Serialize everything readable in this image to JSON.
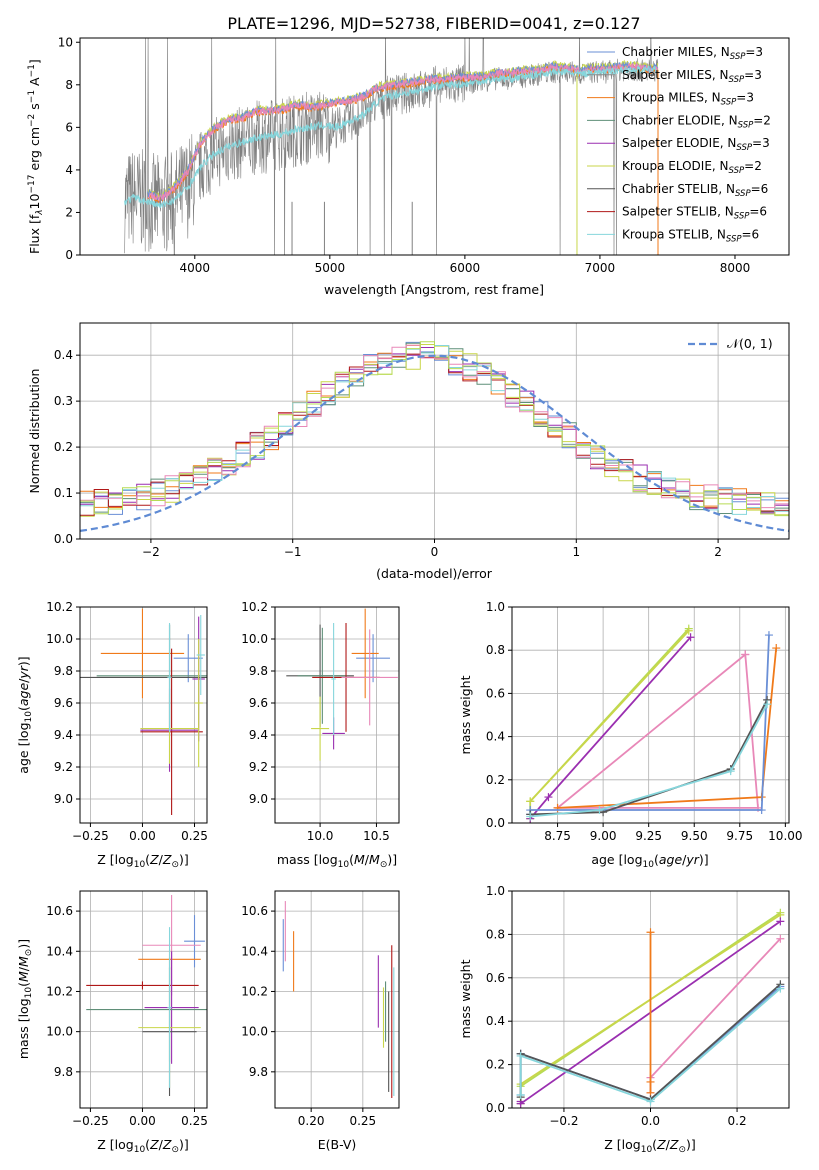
{
  "figure_title": "PLATE=1296, MJD=52738, FIBERID=0041, z=0.127",
  "colors": {
    "chabrier_miles": "#6a8fd6",
    "salpeter_miles": "#8a8a8a",
    "kroupa_miles": "#f07a1a",
    "chabrier_elodie": "#5f8f78",
    "salpeter_elodie": "#9a2fb0",
    "kroupa_elodie": "#c9d64a",
    "chabrier_stelib": "#555555",
    "salpeter_stelib": "#b01818",
    "kroupa_stelib": "#86d6dc",
    "pink": "#e888b8",
    "green": "#b6db55",
    "grid": "#b0b0b0",
    "data_grey": "#808080",
    "gaussian": "#5f8bd4"
  },
  "chart_data": [
    {
      "id": "spectrum",
      "type": "line",
      "title": "PLATE=1296, MJD=52738, FIBERID=0041, z=0.127",
      "xlabel": "wavelength [Angstrom, rest frame]",
      "ylabel_main": "Flux [f",
      "ylabel_sub": "λ",
      "ylabel_rest": "10",
      "ylabel_exp1": "−17",
      "ylabel_unit": " erg cm",
      "ylabel_exp2": "−2",
      "ylabel_unit2": " s",
      "ylabel_exp3": "−1",
      "ylabel_unit3": " A",
      "ylabel_exp4": "−1",
      "ylabel_end": "]",
      "xlim": [
        3150,
        8400
      ],
      "ylim": [
        0,
        10.2
      ],
      "xticks": [
        4000,
        5000,
        6000,
        7000,
        8000
      ],
      "yticks": [
        0,
        2,
        4,
        6,
        8,
        10
      ],
      "data_x": [
        3480,
        3550,
        3650,
        3750,
        3850,
        3950,
        4050,
        4150,
        4250,
        4350,
        4450,
        4550,
        4650,
        4750,
        4850,
        4950,
        5050,
        5150,
        5250,
        5350,
        5450,
        5550,
        5650,
        5750,
        5850,
        5950,
        6050,
        6150,
        6250,
        6350,
        6450,
        6550,
        6650,
        6750,
        6850,
        6950,
        7050,
        7150,
        7250,
        7350,
        7430
      ],
      "model_x": [
        3480,
        3550,
        3650,
        3750,
        3850,
        3950,
        4050,
        4150,
        4250,
        4350,
        4450,
        4550,
        4650,
        4750,
        4850,
        4950,
        5050,
        5150,
        5250,
        5350,
        5450,
        5550,
        5650,
        5750,
        5850,
        5950,
        6050,
        6150,
        6250,
        6350,
        6450,
        6550,
        6650,
        6750,
        6850,
        6950,
        7050,
        7150,
        7250,
        7350,
        7430
      ],
      "model_y": [
        2.5,
        2.7,
        2.5,
        2.3,
        2.6,
        3.2,
        4.2,
        4.8,
        5.1,
        5.3,
        5.5,
        5.6,
        5.7,
        5.9,
        6.0,
        6.1,
        6.0,
        6.3,
        6.6,
        7.2,
        7.5,
        7.6,
        7.7,
        7.9,
        8.0,
        8.0,
        8.1,
        8.2,
        8.3,
        8.3,
        8.4,
        8.5,
        8.6,
        8.6,
        8.5,
        8.6,
        8.6,
        8.7,
        8.7,
        8.7,
        8.7
      ],
      "miles_y": [
        null,
        null,
        2.9,
        2.7,
        3.2,
        4.0,
        5.4,
        6.0,
        6.4,
        6.5,
        6.8,
        6.8,
        6.9,
        7.1,
        7.0,
        7.1,
        7.2,
        7.3,
        7.5,
        7.9,
        8.0,
        8.1,
        8.2,
        8.3,
        8.3,
        8.4,
        8.4,
        8.4,
        8.6,
        8.6,
        8.7,
        8.7,
        8.9,
        8.8,
        8.7,
        8.8,
        8.8,
        8.9,
        8.9,
        8.8,
        8.8
      ],
      "legend": [
        {
          "label_a": "Chabrier MILES, N",
          "label_b": "SSP",
          "label_c": "=3",
          "color": "#6a8fd6"
        },
        {
          "label_a": "Salpeter MILES, N",
          "label_b": "SSP",
          "label_c": "=3",
          "color": "#8a8a8a"
        },
        {
          "label_a": "Kroupa MILES, N",
          "label_b": "SSP",
          "label_c": "=3",
          "color": "#f07a1a"
        },
        {
          "label_a": "Chabrier ELODIE, N",
          "label_b": "SSP",
          "label_c": "=2",
          "color": "#5f8f78"
        },
        {
          "label_a": "Salpeter ELODIE, N",
          "label_b": "SSP",
          "label_c": "=3",
          "color": "#9a2fb0"
        },
        {
          "label_a": "Kroupa ELODIE, N",
          "label_b": "SSP",
          "label_c": "=2",
          "color": "#c9d64a"
        },
        {
          "label_a": "Chabrier STELIB, N",
          "label_b": "SSP",
          "label_c": "=6",
          "color": "#555555"
        },
        {
          "label_a": "Salpeter STELIB, N",
          "label_b": "SSP",
          "label_c": "=6",
          "color": "#b01818"
        },
        {
          "label_a": "Kroupa STELIB, N",
          "label_b": "SSP",
          "label_c": "=6",
          "color": "#86d6dc"
        }
      ]
    },
    {
      "id": "residuals",
      "type": "line",
      "xlabel": "(data-model)/error",
      "ylabel": "Normed distribution",
      "xlim": [
        -2.5,
        2.5
      ],
      "ylim": [
        0,
        0.47
      ],
      "xticks": [
        -2,
        -1,
        0,
        1,
        2
      ],
      "yticks": [
        0.0,
        0.1,
        0.2,
        0.3,
        0.4
      ],
      "bin_width": 0.1,
      "legend_label": "𝒩(0, 1)",
      "hist_colors": [
        "#6a8fd6",
        "#f07a1a",
        "#5f8f78",
        "#9a2fb0",
        "#c9d64a",
        "#b01818",
        "#86d6dc",
        "#e888b8",
        "#b6db55"
      ]
    },
    {
      "id": "age_vs_z",
      "type": "scatter",
      "xlabel": "Z [log10(Z/Z⊙)]",
      "ylabel": "age  [log10(age/yr)]",
      "xlim": [
        -0.3,
        0.31
      ],
      "ylim": [
        8.85,
        10.2
      ],
      "xticks": [
        -0.25,
        0.0,
        0.25
      ],
      "yticks": [
        9.0,
        9.2,
        9.4,
        9.6,
        9.8,
        10.0,
        10.2
      ],
      "points": [
        {
          "x": 0.22,
          "y": 9.88,
          "xerr": 0.07,
          "yerr": 0.15,
          "color": "#6a8fd6"
        },
        {
          "x": 0.0,
          "y": 9.91,
          "xerr": 0.2,
          "yerr": 0.28,
          "color": "#f07a1a"
        },
        {
          "x": 0.13,
          "y": 9.76,
          "xerr": 0.43,
          "yerr": 0.33,
          "color": "#555555"
        },
        {
          "x": 0.13,
          "y": 9.77,
          "xerr": 0.35,
          "yerr": 0.32,
          "color": "#5f8f78"
        },
        {
          "x": 0.27,
          "y": 9.75,
          "xerr": 0.03,
          "yerr": 0.39,
          "color": "#9a2fb0"
        },
        {
          "x": 0.14,
          "y": 9.42,
          "xerr": 0.15,
          "yerr": 0.52,
          "color": "#b01818"
        },
        {
          "x": 0.13,
          "y": 9.43,
          "xerr": 0.14,
          "yerr": 0.26,
          "color": "#9a2fb0"
        },
        {
          "x": 0.13,
          "y": 9.44,
          "xerr": 0.14,
          "yerr": 0.22,
          "color": "#c9d64a"
        },
        {
          "x": 0.27,
          "y": 9.6,
          "xerr": 0.02,
          "yerr": 0.4,
          "color": "#c9d64a"
        },
        {
          "x": 0.28,
          "y": 9.9,
          "xerr": 0.02,
          "yerr": 0.25,
          "color": "#86d6dc"
        },
        {
          "x": 0.13,
          "y": 9.76,
          "xerr": 0.01,
          "yerr": 0.34,
          "color": "#86d6dc"
        }
      ]
    },
    {
      "id": "age_vs_mass",
      "type": "scatter",
      "xlabel": "mass [log10(M/M⊙)]",
      "xlim": [
        9.6,
        10.7
      ],
      "ylim": [
        8.85,
        10.2
      ],
      "xticks": [
        10.0,
        10.5
      ],
      "yticks": [
        9.0,
        9.2,
        9.4,
        9.6,
        9.8,
        10.0,
        10.2
      ],
      "points": [
        {
          "x": 10.47,
          "y": 9.88,
          "xerr": 0.15,
          "yerr": 0.15,
          "color": "#6a8fd6"
        },
        {
          "x": 10.4,
          "y": 9.91,
          "xerr": 0.12,
          "yerr": 0.28,
          "color": "#f07a1a"
        },
        {
          "x": 10.0,
          "y": 9.77,
          "xerr": 0.3,
          "yerr": 0.32,
          "color": "#555555"
        },
        {
          "x": 10.02,
          "y": 9.77,
          "xerr": 0.22,
          "yerr": 0.3,
          "color": "#5f8f78"
        },
        {
          "x": 10.23,
          "y": 9.76,
          "xerr": 0.3,
          "yerr": 0.34,
          "color": "#b01818"
        },
        {
          "x": 10.44,
          "y": 9.76,
          "xerr": 0.25,
          "yerr": 0.3,
          "color": "#e888b8"
        },
        {
          "x": 10.12,
          "y": 9.41,
          "xerr": 0.1,
          "yerr": 0.1,
          "color": "#9a2fb0"
        },
        {
          "x": 10.0,
          "y": 9.44,
          "xerr": 0.08,
          "yerr": 0.2,
          "color": "#c9d64a"
        },
        {
          "x": 10.12,
          "y": 9.75,
          "xerr": 0.02,
          "yerr": 0.35,
          "color": "#86d6dc"
        }
      ]
    },
    {
      "id": "weight_vs_age",
      "type": "line",
      "xlabel": "age  [log10(age/yr)]",
      "ylabel": "mass weight",
      "xlim": [
        8.5,
        10.02
      ],
      "ylim": [
        0,
        1.0
      ],
      "xticks": [
        8.75,
        9.0,
        9.25,
        9.5,
        9.75,
        10.0
      ],
      "yticks": [
        0.0,
        0.2,
        0.4,
        0.6,
        0.8,
        1.0
      ],
      "series": [
        {
          "color": "#b6db55",
          "x": [
            9.47,
            8.6,
            8.6
          ],
          "y": [
            0.9,
            0.1,
            0.02
          ]
        },
        {
          "color": "#c9d64a",
          "x": [
            9.47,
            8.6
          ],
          "y": [
            0.89,
            0.1
          ]
        },
        {
          "color": "#9a2fb0",
          "x": [
            9.48,
            8.7,
            8.6
          ],
          "y": [
            0.86,
            0.12,
            0.02
          ]
        },
        {
          "color": "#e888b8",
          "x": [
            9.78,
            9.85,
            8.75,
            9.78
          ],
          "y": [
            0.78,
            0.07,
            0.07,
            0.78
          ]
        },
        {
          "color": "#f07a1a",
          "x": [
            9.95,
            9.87,
            8.75
          ],
          "y": [
            0.81,
            0.12,
            0.07
          ]
        },
        {
          "color": "#6a8fd6",
          "x": [
            9.91,
            9.87,
            8.6,
            8.6
          ],
          "y": [
            0.87,
            0.06,
            0.06,
            0.04
          ]
        },
        {
          "color": "#555555",
          "x": [
            9.9,
            9.7,
            9.0,
            8.6
          ],
          "y": [
            0.57,
            0.25,
            0.05,
            0.04
          ]
        },
        {
          "color": "#86d6dc",
          "x": [
            9.9,
            9.7,
            8.98,
            8.6
          ],
          "y": [
            0.55,
            0.24,
            0.06,
            0.03
          ]
        }
      ]
    },
    {
      "id": "mass_vs_z",
      "type": "scatter",
      "xlabel": "Z [log10(Z/Z⊙)]",
      "ylabel": "mass [log10(M/M⊙)]",
      "xlim": [
        -0.3,
        0.31
      ],
      "ylim": [
        9.62,
        10.7
      ],
      "xticks": [
        -0.25,
        0.0,
        0.25
      ],
      "yticks": [
        9.8,
        10.0,
        10.2,
        10.4,
        10.6
      ],
      "points": [
        {
          "x": 0.25,
          "y": 10.45,
          "xerr": 0.05,
          "yerr": 0.13,
          "color": "#6a8fd6"
        },
        {
          "x": 0.13,
          "y": 10.36,
          "xerr": 0.15,
          "yerr": 0.05,
          "color": "#f07a1a"
        },
        {
          "x": 0.0,
          "y": 10.23,
          "xerr": 0.27,
          "yerr": 0.02,
          "color": "#b01818"
        },
        {
          "x": 0.14,
          "y": 10.43,
          "xerr": 0.14,
          "yerr": 0.25,
          "color": "#e888b8"
        },
        {
          "x": 0.14,
          "y": 10.12,
          "xerr": 0.13,
          "yerr": 0.28,
          "color": "#9a2fb0"
        },
        {
          "x": 0.13,
          "y": 10.02,
          "xerr": 0.15,
          "yerr": 0.3,
          "color": "#c9d64a"
        },
        {
          "x": 0.13,
          "y": 10.0,
          "xerr": 0.13,
          "yerr": 0.32,
          "color": "#555555"
        },
        {
          "x": 0.13,
          "y": 10.11,
          "xerr": 0.4,
          "yerr": 0.26,
          "color": "#5f8f78"
        },
        {
          "x": 0.13,
          "y": 10.12,
          "xerr": 0.01,
          "yerr": 0.4,
          "color": "#86d6dc"
        }
      ]
    },
    {
      "id": "mass_vs_ebv",
      "type": "scatter",
      "xlabel": "E(B-V)",
      "xlim": [
        0.165,
        0.285
      ],
      "ylim": [
        9.62,
        10.7
      ],
      "xticks": [
        0.2,
        0.25
      ],
      "yticks": [
        9.8,
        10.0,
        10.2,
        10.4,
        10.6
      ],
      "points": [
        {
          "x": 0.175,
          "y": 10.5,
          "yerr": 0.15,
          "color": "#e888b8"
        },
        {
          "x": 0.173,
          "y": 10.43,
          "yerr": 0.13,
          "color": "#6a8fd6"
        },
        {
          "x": 0.183,
          "y": 10.35,
          "yerr": 0.15,
          "color": "#f07a1a"
        },
        {
          "x": 0.265,
          "y": 10.2,
          "yerr": 0.18,
          "color": "#9a2fb0"
        },
        {
          "x": 0.27,
          "y": 10.07,
          "yerr": 0.15,
          "color": "#c9d64a"
        },
        {
          "x": 0.272,
          "y": 10.1,
          "yerr": 0.15,
          "color": "#5f8f78"
        },
        {
          "x": 0.278,
          "y": 10.05,
          "yerr": 0.38,
          "color": "#b01818"
        },
        {
          "x": 0.28,
          "y": 10.0,
          "yerr": 0.32,
          "color": "#86d6dc"
        },
        {
          "x": 0.275,
          "y": 9.95,
          "yerr": 0.25,
          "color": "#555555"
        }
      ]
    },
    {
      "id": "weight_vs_z",
      "type": "line",
      "xlabel": "Z [log10(Z/Z⊙)]",
      "ylabel": "mass weight",
      "xlim": [
        -0.32,
        0.32
      ],
      "ylim": [
        0,
        1.0
      ],
      "xticks": [
        -0.2,
        0.0,
        0.2
      ],
      "yticks": [
        0.0,
        0.2,
        0.4,
        0.6,
        0.8,
        1.0
      ],
      "series": [
        {
          "color": "#b6db55",
          "x": [
            0.3,
            -0.3,
            -0.3
          ],
          "y": [
            0.9,
            0.1,
            0.02
          ]
        },
        {
          "color": "#c9d64a",
          "x": [
            0.3,
            -0.3
          ],
          "y": [
            0.89,
            0.11
          ]
        },
        {
          "color": "#9a2fb0",
          "x": [
            0.3,
            -0.3,
            -0.3
          ],
          "y": [
            0.86,
            0.02,
            0.03
          ]
        },
        {
          "color": "#e888b8",
          "x": [
            0.3,
            0.0,
            0.0
          ],
          "y": [
            0.78,
            0.14,
            0.07
          ]
        },
        {
          "color": "#f07a1a",
          "x": [
            0.0,
            0.0,
            0.0
          ],
          "y": [
            0.81,
            0.12,
            0.07
          ]
        },
        {
          "color": "#6a8fd6",
          "x": [
            0.3,
            0.0,
            -0.3,
            -0.3
          ],
          "y": [
            0.56,
            0.04,
            0.25,
            0.06
          ]
        },
        {
          "color": "#555555",
          "x": [
            0.3,
            0.0,
            -0.3,
            -0.3
          ],
          "y": [
            0.57,
            0.04,
            0.25,
            0.05
          ]
        },
        {
          "color": "#86d6dc",
          "x": [
            0.3,
            0.0,
            -0.3,
            -0.3
          ],
          "y": [
            0.55,
            0.03,
            0.24,
            0.06
          ]
        }
      ]
    }
  ]
}
